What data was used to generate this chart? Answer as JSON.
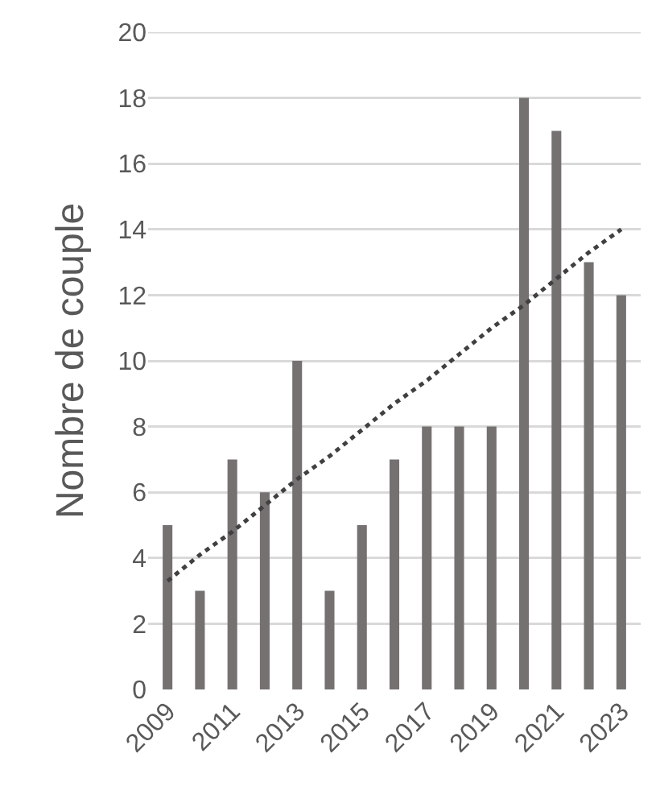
{
  "chart_data": {
    "type": "bar",
    "ylabel": "Nombre de couple",
    "categories": [
      "2009",
      null,
      "2011",
      null,
      "2013",
      null,
      "2015",
      null,
      "2017",
      null,
      "2019",
      null,
      "2021",
      null,
      "2023"
    ],
    "series": [
      {
        "color": "#767171",
        "values": [
          5,
          3,
          7,
          6,
          10,
          3,
          5,
          7,
          8,
          8,
          8,
          18,
          17,
          13,
          12
        ]
      },
      {
        "type": "line",
        "color": "#404040",
        "line_style": "dotted",
        "marker": "none",
        "values": [
          3.3,
          4.1,
          4.8,
          5.6,
          6.4,
          7.1,
          7.9,
          8.7,
          9.4,
          10.2,
          11.0,
          11.7,
          12.5,
          13.3,
          14.0
        ]
      }
    ],
    "ylim": [
      0,
      20
    ],
    "yticks": [
      0,
      2,
      4,
      6,
      8,
      10,
      12,
      14,
      16,
      18,
      20
    ],
    "grid": "y"
  }
}
